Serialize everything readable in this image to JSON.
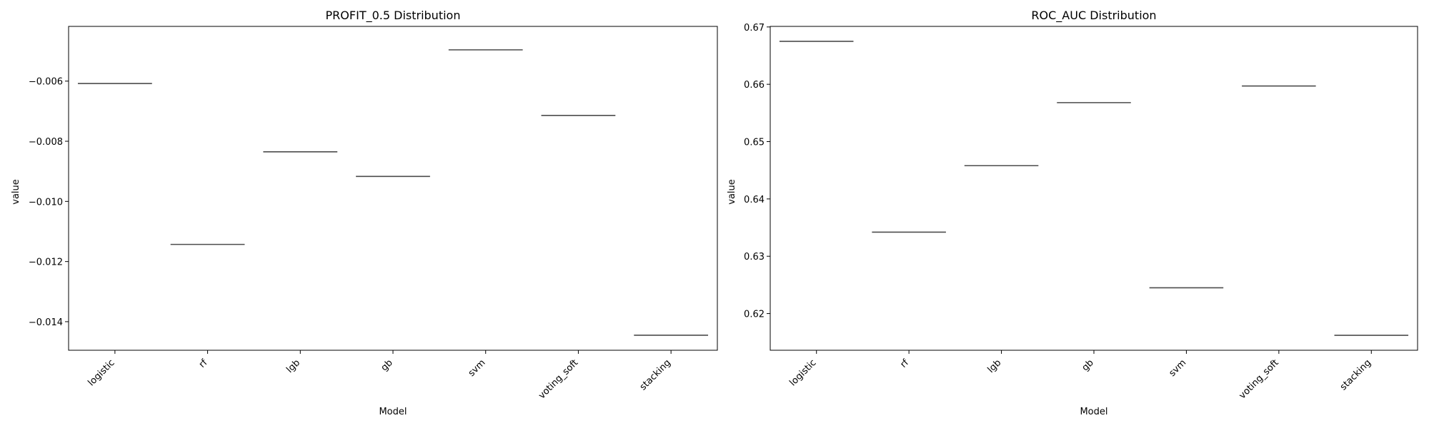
{
  "chart_data": [
    {
      "type": "box",
      "title": "PROFIT_0.5 Distribution",
      "xlabel": "Model",
      "ylabel": "value",
      "categories": [
        "logistic",
        "rf",
        "lgb",
        "gb",
        "svm",
        "voting_soft",
        "stacking"
      ],
      "values": [
        -0.00608,
        -0.01143,
        -0.00835,
        -0.00917,
        -0.00496,
        -0.00714,
        -0.01445
      ],
      "ylim": [
        -0.01495,
        -0.00418
      ],
      "yticks": [
        -0.014,
        -0.012,
        -0.01,
        -0.008,
        -0.006
      ],
      "ytick_labels": [
        "−0.014",
        "−0.012",
        "−0.010",
        "−0.008",
        "−0.006"
      ],
      "grid": false,
      "box_color": "#4c4c4c"
    },
    {
      "type": "box",
      "title": "ROC_AUC Distribution",
      "xlabel": "Model",
      "ylabel": "value",
      "categories": [
        "logistic",
        "rf",
        "lgb",
        "gb",
        "svm",
        "voting_soft",
        "stacking"
      ],
      "values": [
        0.6675,
        0.6342,
        0.6458,
        0.6568,
        0.6245,
        0.6597,
        0.6162
      ],
      "ylim": [
        0.6136,
        0.6701
      ],
      "yticks": [
        0.62,
        0.63,
        0.64,
        0.65,
        0.66,
        0.67
      ],
      "ytick_labels": [
        "0.62",
        "0.63",
        "0.64",
        "0.65",
        "0.66",
        "0.67"
      ],
      "grid": false,
      "box_color": "#4c4c4c"
    }
  ]
}
